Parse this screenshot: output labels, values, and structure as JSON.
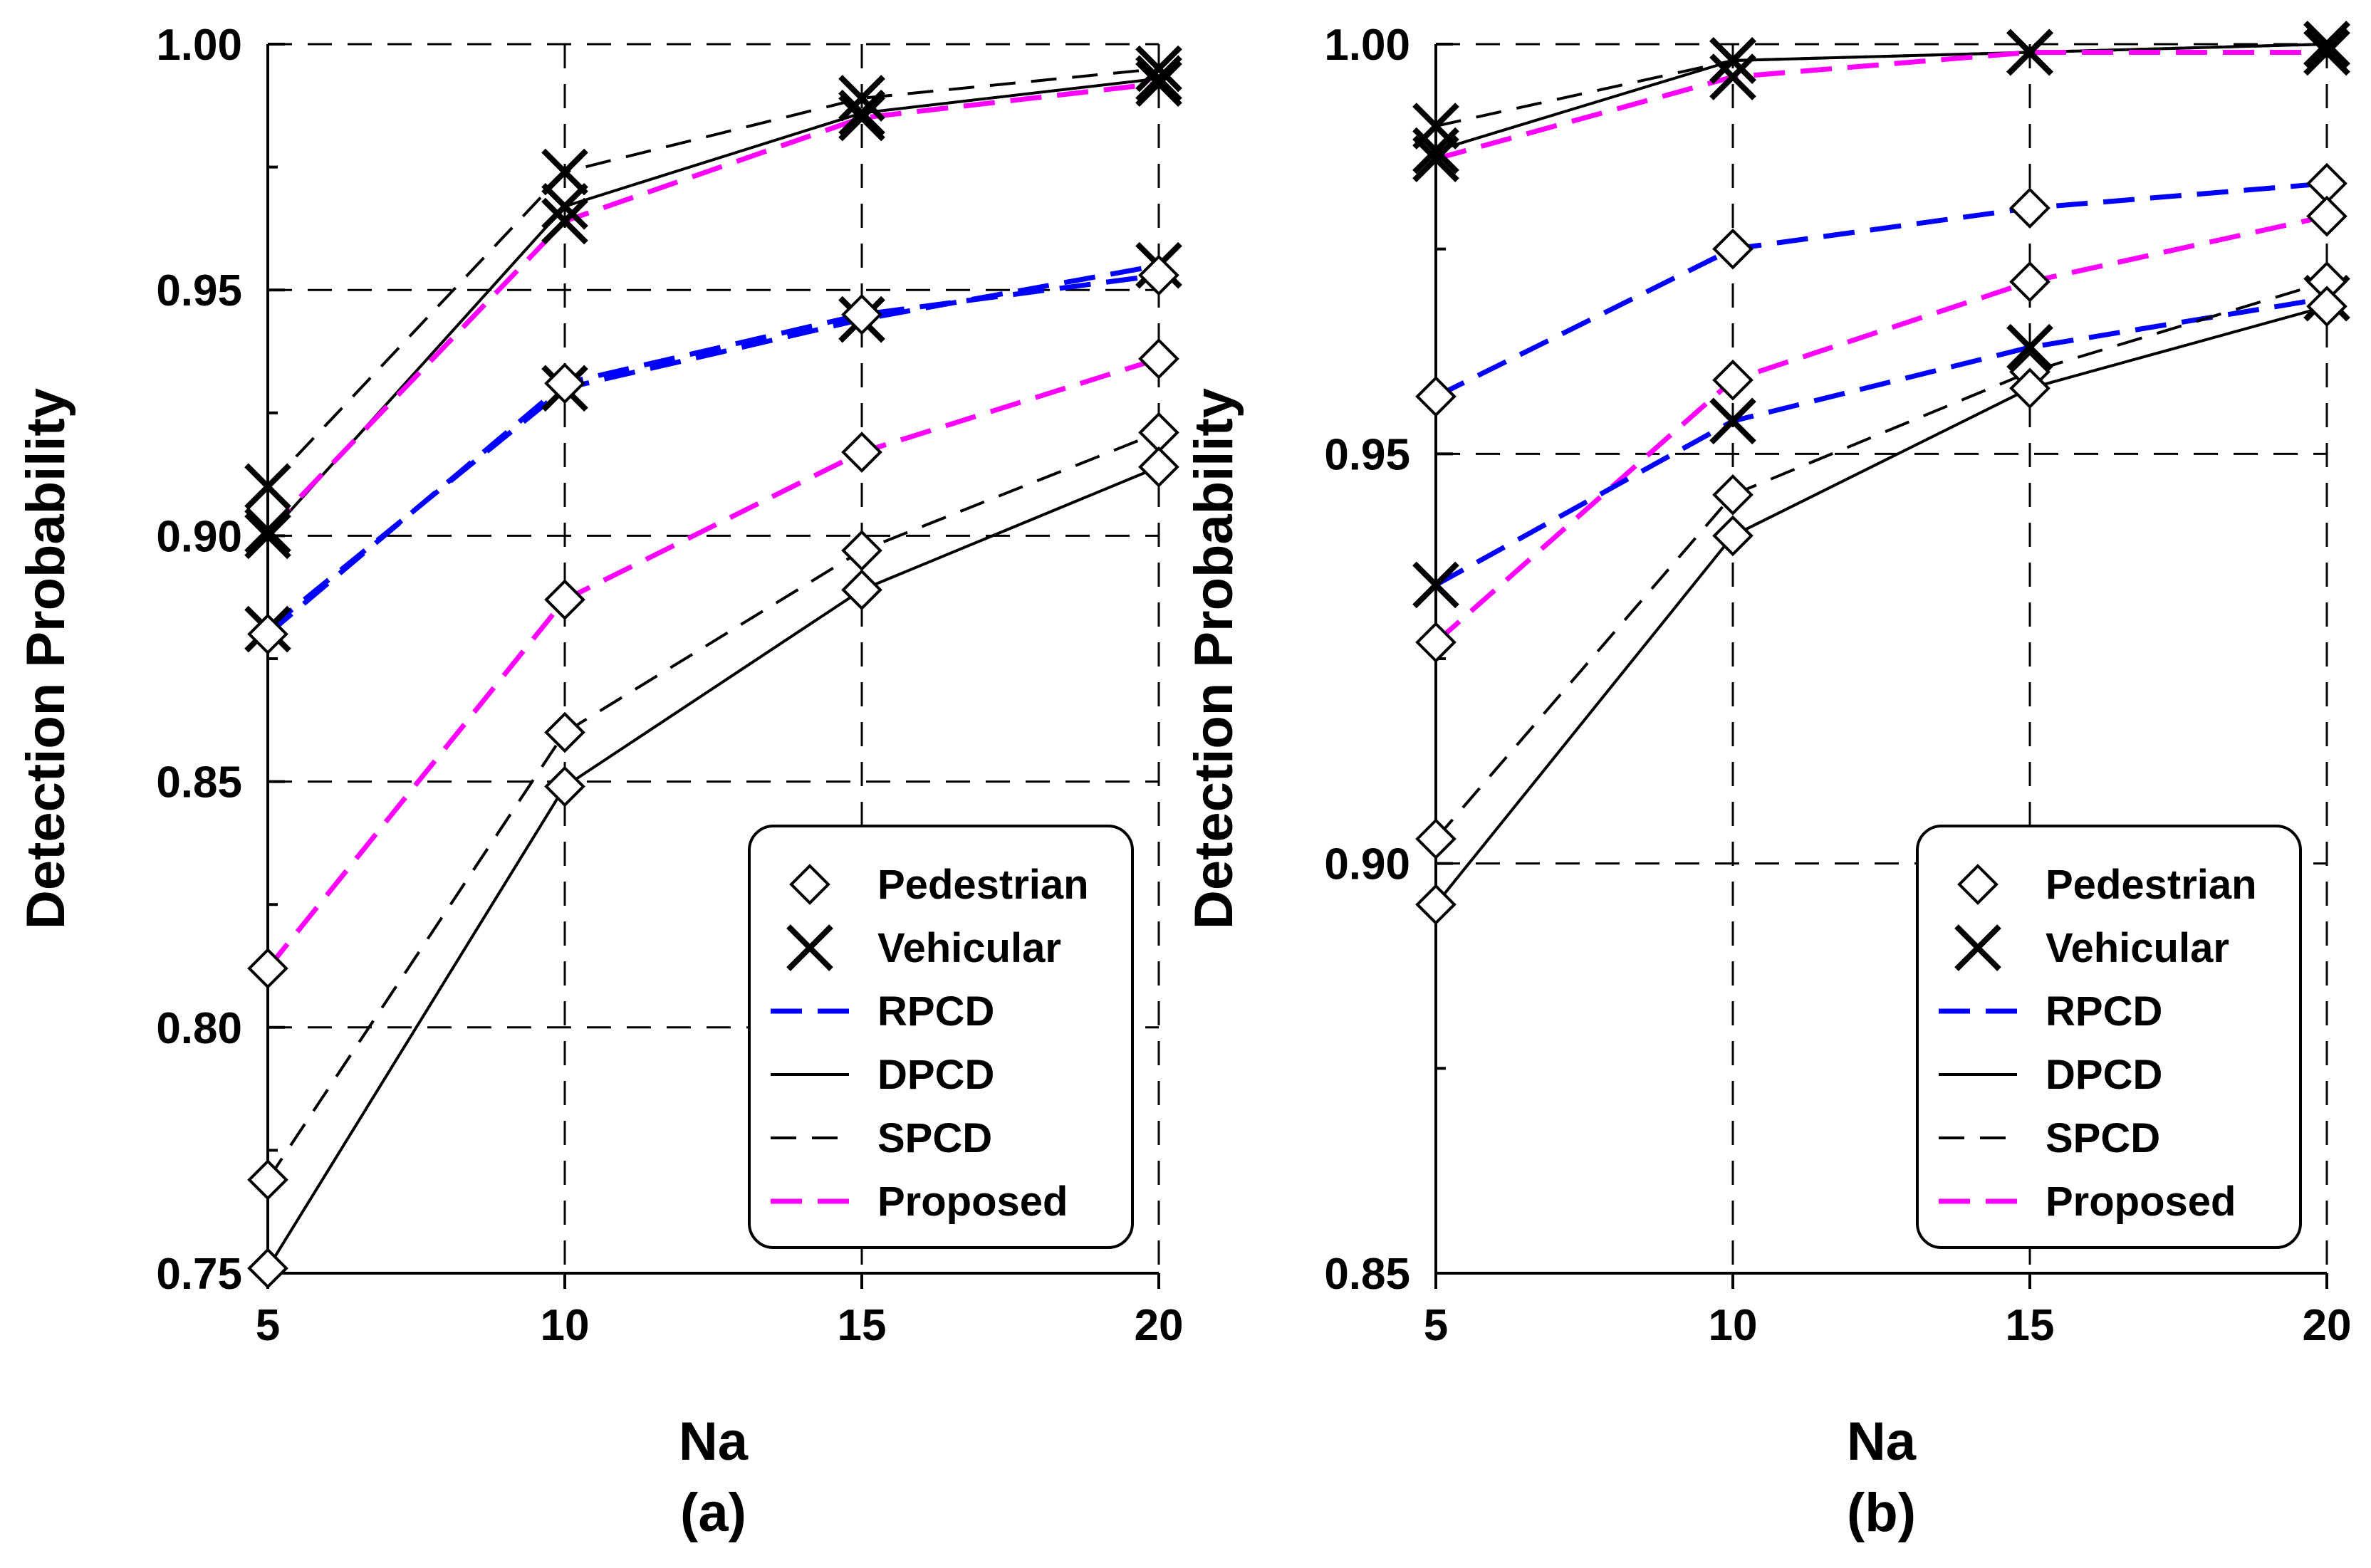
{
  "chart_data": [
    {
      "type": "line",
      "panel_label": "(a)",
      "xlabel": "Na",
      "ylabel": "Detection Probability",
      "x": [
        5,
        10,
        15,
        20
      ],
      "x_ticks": [
        "5",
        "10",
        "15",
        "20"
      ],
      "ylim": [
        0.75,
        1.0
      ],
      "y_ticks": [
        "0.75",
        "0.80",
        "0.85",
        "0.90",
        "0.95",
        "1.00"
      ],
      "grid": true,
      "legend_position": "bottom-right",
      "series": [
        {
          "name": "Vehicular / SPCD",
          "scenario": "Vehicular",
          "method": "SPCD",
          "values": [
            0.91,
            0.974,
            0.989,
            0.995
          ]
        },
        {
          "name": "Vehicular / DPCD",
          "scenario": "Vehicular",
          "method": "DPCD",
          "values": [
            0.9,
            0.967,
            0.986,
            0.993
          ]
        },
        {
          "name": "Vehicular / Proposed",
          "scenario": "Vehicular",
          "method": "Proposed",
          "values": [
            0.901,
            0.964,
            0.985,
            0.992
          ]
        },
        {
          "name": "Vehicular / RPCD",
          "scenario": "Vehicular",
          "method": "RPCD",
          "values": [
            0.881,
            0.93,
            0.944,
            0.955
          ]
        },
        {
          "name": "Pedestrian / RPCD",
          "scenario": "Pedestrian",
          "method": "RPCD",
          "values": [
            0.88,
            0.931,
            0.945,
            0.953
          ]
        },
        {
          "name": "Pedestrian / Proposed",
          "scenario": "Pedestrian",
          "method": "Proposed",
          "values": [
            0.812,
            0.887,
            0.917,
            0.936
          ]
        },
        {
          "name": "Pedestrian / SPCD",
          "scenario": "Pedestrian",
          "method": "SPCD",
          "values": [
            0.769,
            0.86,
            0.897,
            0.921
          ]
        },
        {
          "name": "Pedestrian / DPCD",
          "scenario": "Pedestrian",
          "method": "DPCD",
          "values": [
            0.751,
            0.849,
            0.889,
            0.914
          ]
        }
      ]
    },
    {
      "type": "line",
      "panel_label": "(b)",
      "xlabel": "Na",
      "ylabel": "Detection Probability",
      "x": [
        5,
        10,
        15,
        20
      ],
      "x_ticks": [
        "5",
        "10",
        "15",
        "20"
      ],
      "ylim": [
        0.85,
        1.0
      ],
      "y_ticks": [
        "0.85",
        "0.90",
        "0.95",
        "1.00"
      ],
      "grid": true,
      "legend_position": "bottom-right",
      "series": [
        {
          "name": "Vehicular / SPCD",
          "scenario": "Vehicular",
          "method": "SPCD",
          "values": [
            0.99,
            0.998,
            0.999,
            1.0
          ]
        },
        {
          "name": "Vehicular / DPCD",
          "scenario": "Vehicular",
          "method": "DPCD",
          "values": [
            0.987,
            0.998,
            0.999,
            1.0
          ]
        },
        {
          "name": "Vehicular / Proposed",
          "scenario": "Vehicular",
          "method": "Proposed",
          "values": [
            0.986,
            0.996,
            0.999,
            0.999
          ]
        },
        {
          "name": "Pedestrian / RPCD",
          "scenario": "Pedestrian",
          "method": "RPCD",
          "values": [
            0.957,
            0.975,
            0.98,
            0.983
          ]
        },
        {
          "name": "Pedestrian / Proposed",
          "scenario": "Pedestrian",
          "method": "Proposed",
          "values": [
            0.927,
            0.959,
            0.971,
            0.979
          ]
        },
        {
          "name": "Vehicular / RPCD",
          "scenario": "Vehicular",
          "method": "RPCD",
          "values": [
            0.934,
            0.954,
            0.963,
            0.969
          ]
        },
        {
          "name": "Pedestrian / SPCD",
          "scenario": "Pedestrian",
          "method": "SPCD",
          "values": [
            0.903,
            0.945,
            0.96,
            0.971
          ]
        },
        {
          "name": "Pedestrian / DPCD",
          "scenario": "Pedestrian",
          "method": "DPCD",
          "values": [
            0.895,
            0.94,
            0.958,
            0.968
          ]
        }
      ]
    }
  ],
  "legend": {
    "entries": [
      {
        "label": "Pedestrian",
        "kind": "marker",
        "marker": "diamond-icon"
      },
      {
        "label": "Vehicular",
        "kind": "marker",
        "marker": "cross-icon"
      },
      {
        "label": "RPCD",
        "kind": "line",
        "color": "#0000ff",
        "dash": "dashed"
      },
      {
        "label": "DPCD",
        "kind": "line",
        "color": "#000000",
        "dash": "solid"
      },
      {
        "label": "SPCD",
        "kind": "line",
        "color": "#000000",
        "dash": "dashed"
      },
      {
        "label": "Proposed",
        "kind": "line",
        "color": "#ff00ff",
        "dash": "dashed"
      }
    ]
  },
  "colors": {
    "RPCD": "#0000ff",
    "DPCD": "#000000",
    "SPCD": "#000000",
    "Proposed": "#ff00ff",
    "grid": "#000000",
    "axis": "#000000",
    "marker": "#000000"
  }
}
